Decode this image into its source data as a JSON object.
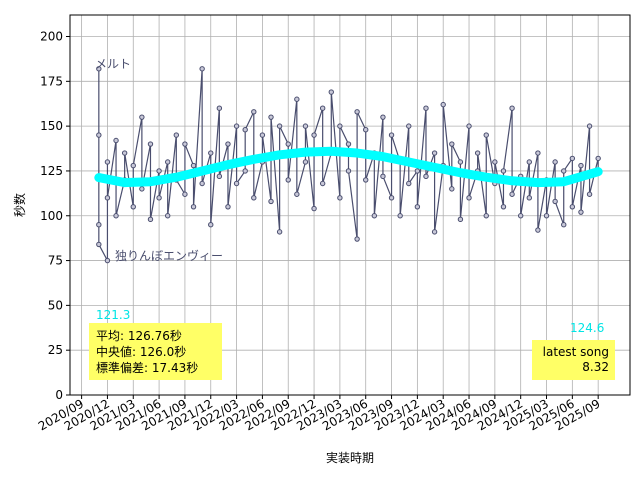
{
  "chart_data": {
    "type": "line",
    "xlabel": "実装時期",
    "ylabel": "秒数",
    "xlim": [
      "2020/08",
      "2025/12"
    ],
    "ylim": [
      0,
      212
    ],
    "xticks": [
      "2020/09",
      "2020/12",
      "2021/03",
      "2021/06",
      "2021/09",
      "2021/12",
      "2022/03",
      "2022/06",
      "2022/09",
      "2022/12",
      "2023/03",
      "2023/06",
      "2023/09",
      "2023/12",
      "2024/03",
      "2024/06",
      "2024/09",
      "2024/12",
      "2025/03",
      "2025/06",
      "2025/09"
    ],
    "yticks": [
      0,
      25,
      50,
      75,
      100,
      125,
      150,
      175,
      200
    ],
    "grid": true,
    "series": [
      {
        "color": "#4a4e6e",
        "marker": "circle",
        "x": [
          "2020/11",
          "2020/11",
          "2020/11",
          "2020/11",
          "2020/12",
          "2020/12",
          "2020/12",
          "2021/01",
          "2021/01",
          "2021/02",
          "2021/02",
          "2021/03",
          "2021/03",
          "2021/04",
          "2021/04",
          "2021/05",
          "2021/05",
          "2021/06",
          "2021/06",
          "2021/07",
          "2021/07",
          "2021/08",
          "2021/08",
          "2021/09",
          "2021/09",
          "2021/10",
          "2021/10",
          "2021/11",
          "2021/11",
          "2021/12",
          "2021/12",
          "2022/01",
          "2022/01",
          "2022/02",
          "2022/02",
          "2022/03",
          "2022/03",
          "2022/04",
          "2022/04",
          "2022/05",
          "2022/05",
          "2022/06",
          "2022/06",
          "2022/07",
          "2022/07",
          "2022/08",
          "2022/08",
          "2022/09",
          "2022/09",
          "2022/10",
          "2022/10",
          "2022/11",
          "2022/11",
          "2022/12",
          "2022/12",
          "2023/01",
          "2023/01",
          "2023/02",
          "2023/02",
          "2023/03",
          "2023/03",
          "2023/04",
          "2023/04",
          "2023/05",
          "2023/05",
          "2023/06",
          "2023/06",
          "2023/07",
          "2023/07",
          "2023/08",
          "2023/08",
          "2023/09",
          "2023/09",
          "2023/10",
          "2023/10",
          "2023/11",
          "2023/11",
          "2023/12",
          "2023/12",
          "2024/01",
          "2024/01",
          "2024/02",
          "2024/02",
          "2024/03",
          "2024/03",
          "2024/04",
          "2024/04",
          "2024/05",
          "2024/05",
          "2024/06",
          "2024/06",
          "2024/07",
          "2024/07",
          "2024/08",
          "2024/08",
          "2024/09",
          "2024/09",
          "2024/10",
          "2024/10",
          "2024/11",
          "2024/11",
          "2024/12",
          "2024/12",
          "2025/01",
          "2025/01",
          "2025/02",
          "2025/02",
          "2025/03",
          "2025/03",
          "2025/04",
          "2025/04",
          "2025/05",
          "2025/05",
          "2025/06",
          "2025/06",
          "2025/07",
          "2025/07",
          "2025/08",
          "2025/08",
          "2025/09",
          "2025/09"
        ],
        "values": [
          182,
          95,
          145,
          84,
          75,
          130,
          110,
          142,
          100,
          120,
          135,
          105,
          128,
          155,
          115,
          140,
          98,
          125,
          110,
          130,
          100,
          145,
          120,
          112,
          140,
          128,
          105,
          182,
          118,
          135,
          95,
          160,
          122,
          140,
          105,
          150,
          118,
          125,
          148,
          158,
          110,
          130,
          145,
          108,
          155,
          91,
          150,
          140,
          120,
          165,
          112,
          130,
          150,
          104,
          145,
          160,
          118,
          135,
          169,
          110,
          150,
          140,
          125,
          87,
          158,
          148,
          120,
          135,
          100,
          155,
          122,
          110,
          145,
          130,
          100,
          150,
          118,
          125,
          105,
          160,
          122,
          135,
          91,
          128,
          162,
          115,
          140,
          130,
          98,
          150,
          110,
          125,
          135,
          100,
          145,
          118,
          130,
          105,
          125,
          160,
          112,
          122,
          100,
          130,
          110,
          135,
          92,
          120,
          100,
          130,
          108,
          95,
          125,
          132,
          105,
          128,
          102,
          150,
          112,
          132,
          124
        ]
      },
      {
        "color": "#00ffff",
        "marker": "none",
        "x": [
          "2020/11",
          "2021/02",
          "2021/05",
          "2021/08",
          "2021/11",
          "2022/02",
          "2022/05",
          "2022/08",
          "2022/11",
          "2023/02",
          "2023/05",
          "2023/08",
          "2023/11",
          "2024/02",
          "2024/05",
          "2024/08",
          "2024/11",
          "2025/02",
          "2025/05",
          "2025/09"
        ],
        "values": [
          121.3,
          118.5,
          119,
          121.5,
          125,
          128.5,
          131.5,
          134,
          135.5,
          136,
          135,
          133,
          130,
          127,
          124,
          121.5,
          119.5,
          118.5,
          119,
          124.6
        ]
      }
    ],
    "annotations": [
      "メルト",
      "独りんぼエンヴィー",
      "121.3",
      "124.6"
    ],
    "stats_box": [
      "平均: 126.76秒",
      "中央値: 126.0秒",
      "標準偏差:  17.43秒"
    ],
    "latest_box": [
      "latest song",
      "8.32"
    ]
  }
}
